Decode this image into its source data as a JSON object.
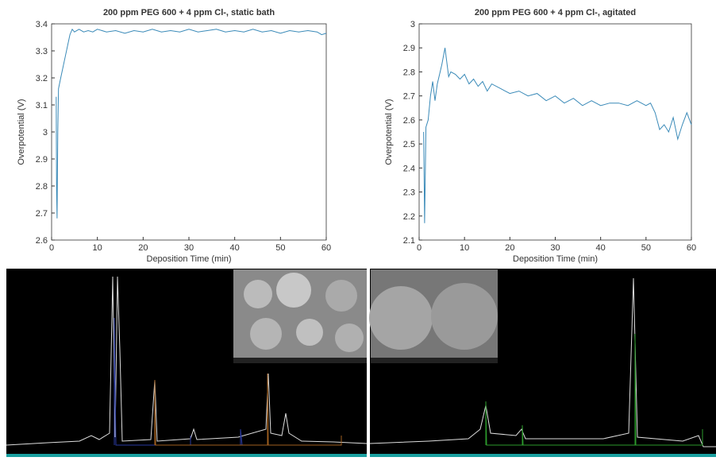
{
  "chart_data": [
    {
      "type": "line",
      "title": "200 ppm PEG 600 + 4 ppm Cl-, static bath",
      "x_label": "Deposition Time (min)",
      "y_label": "Overpotential (V)",
      "color": "#3a8ab8",
      "x": [
        1.0,
        1.1,
        1.2,
        1.35,
        1.5,
        2,
        3,
        4,
        4.5,
        5,
        6,
        7,
        8,
        9,
        10,
        12,
        14,
        16,
        18,
        20,
        22,
        24,
        26,
        28,
        30,
        32,
        34,
        36,
        38,
        40,
        42,
        44,
        46,
        48,
        50,
        52,
        54,
        56,
        58,
        59,
        60
      ],
      "values": [
        3.13,
        2.78,
        2.68,
        3.0,
        3.16,
        3.2,
        3.28,
        3.36,
        3.38,
        3.37,
        3.38,
        3.37,
        3.375,
        3.37,
        3.38,
        3.37,
        3.375,
        3.365,
        3.375,
        3.37,
        3.38,
        3.37,
        3.375,
        3.37,
        3.38,
        3.37,
        3.375,
        3.38,
        3.37,
        3.375,
        3.37,
        3.38,
        3.37,
        3.375,
        3.365,
        3.375,
        3.37,
        3.375,
        3.37,
        3.36,
        3.365
      ],
      "xlim": [
        0,
        60
      ],
      "xticks": [
        0,
        10,
        20,
        30,
        40,
        50,
        60
      ],
      "ylim": [
        2.6,
        3.4
      ],
      "yticks": [
        2.6,
        2.7,
        2.8,
        2.9,
        3,
        3.1,
        3.2,
        3.3,
        3.4
      ]
    },
    {
      "type": "line",
      "title": "200 ppm PEG 600 + 4 ppm Cl-, agitated",
      "x_label": "Deposition Time (min)",
      "y_label": "Overpotential (V)",
      "color": "#3a8ab8",
      "x": [
        1,
        1.2,
        1.5,
        2,
        2.5,
        3,
        3.5,
        4,
        5,
        5.7,
        6.5,
        7,
        8,
        9,
        10,
        11,
        12,
        13,
        14,
        15,
        16,
        18,
        20,
        22,
        24,
        26,
        28,
        30,
        32,
        34,
        36,
        38,
        40,
        42,
        44,
        46,
        48,
        50,
        51,
        52,
        53,
        54,
        55,
        56,
        57,
        58,
        59,
        60
      ],
      "values": [
        2.55,
        2.17,
        2.57,
        2.6,
        2.7,
        2.76,
        2.68,
        2.75,
        2.83,
        2.9,
        2.78,
        2.8,
        2.79,
        2.77,
        2.79,
        2.75,
        2.77,
        2.74,
        2.76,
        2.72,
        2.75,
        2.73,
        2.71,
        2.72,
        2.7,
        2.71,
        2.68,
        2.7,
        2.67,
        2.69,
        2.66,
        2.68,
        2.66,
        2.67,
        2.67,
        2.66,
        2.68,
        2.66,
        2.67,
        2.63,
        2.56,
        2.58,
        2.55,
        2.61,
        2.52,
        2.58,
        2.63,
        2.58
      ],
      "xlim": [
        0,
        60
      ],
      "xticks": [
        0,
        10,
        20,
        30,
        40,
        50,
        60
      ],
      "ylim": [
        2.1,
        3
      ],
      "yticks": [
        2.1,
        2.2,
        2.3,
        2.4,
        2.5,
        2.6,
        2.7,
        2.8,
        2.9,
        3
      ]
    }
  ]
}
